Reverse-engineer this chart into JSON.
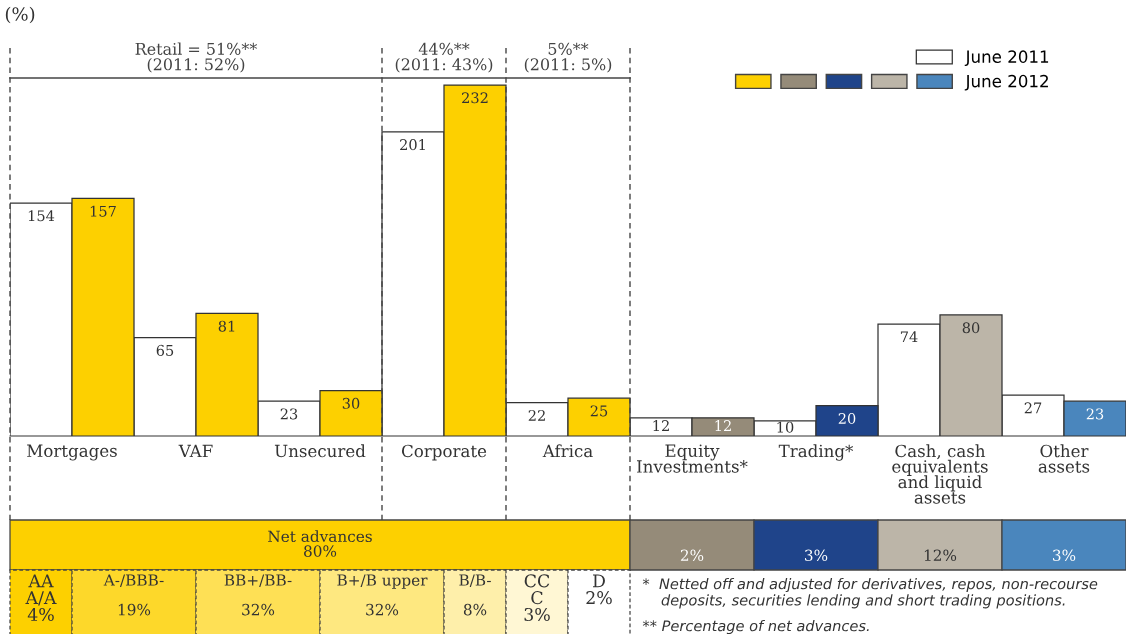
{
  "chart_data": {
    "type": "bar",
    "ylabel": "(%)",
    "categories": [
      "Mortgages",
      "VAF",
      "Unsecured",
      "Corporate",
      "Africa",
      "Equity\nInvestments*",
      "Trading*",
      "Cash, cash\nequivalents\nand liquid\nassets",
      "Other\nassets"
    ],
    "series": [
      {
        "name": "June 2011",
        "color": "#ffffff",
        "values": [
          154,
          65,
          23,
          201,
          22,
          12,
          10,
          74,
          27
        ]
      },
      {
        "name": "June 2012",
        "colors": [
          "#fdd000",
          "#fdd000",
          "#fdd000",
          "#fdd000",
          "#fdd000",
          "#958b79",
          "#1f448a",
          "#bcb5a8",
          "#4a86bd"
        ],
        "values": [
          157,
          81,
          30,
          232,
          25,
          12,
          20,
          80,
          23
        ]
      }
    ],
    "data_labels": true,
    "legend": "top right",
    "grid": false,
    "annotations": [
      "Retail = 51%**\n(2011: 52%)",
      "44%**\n(2011: 43%)",
      "5%**\n(2011: 5%)",
      "Net advances\n80%",
      "2%",
      "3%",
      "12%",
      "3%",
      "AA\nA/A\n4%",
      "A-/BBB-\n\n19%",
      "BB+/BB-\n\n32%",
      "B+/B upper\n\n32%",
      "B/B-\n\n8%",
      "CC\nC\n3%",
      "D\n2%",
      "*  Netted off and adjusted for derivatives, repos, non-recourse\n    deposits, securities lending and short trading positions.",
      "** Percentage of net advances."
    ]
  }
}
